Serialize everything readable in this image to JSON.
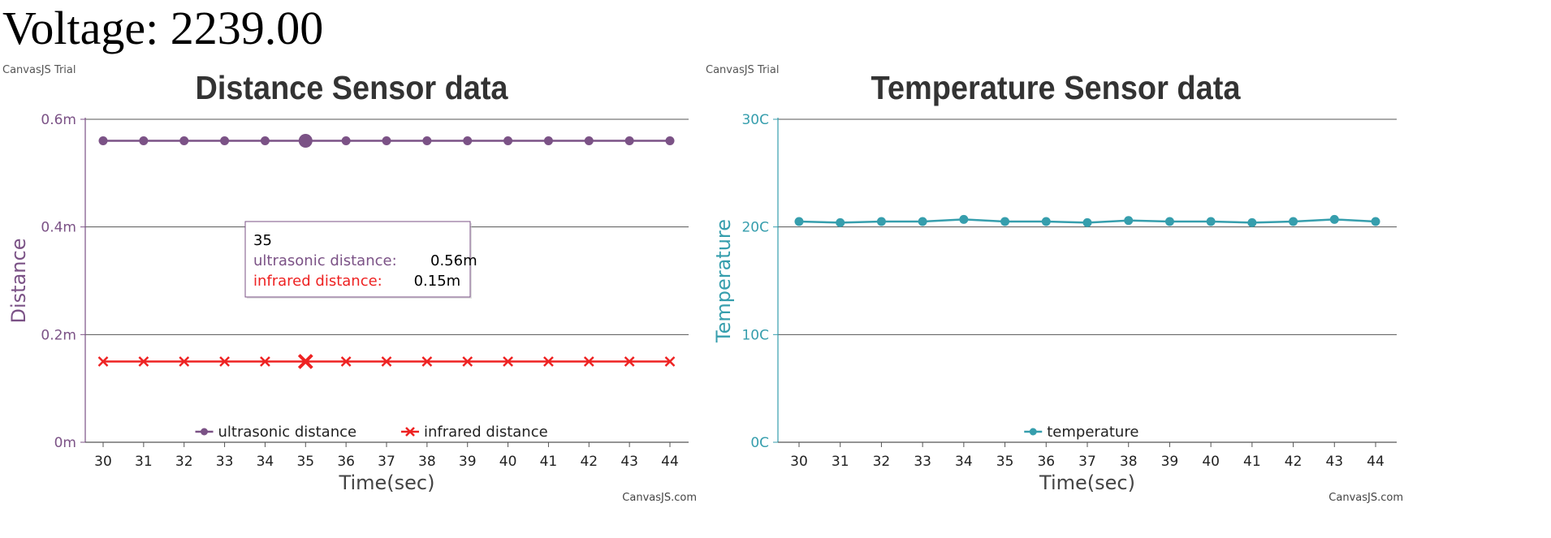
{
  "voltage": {
    "label": "Voltage:",
    "value": "2239.00"
  },
  "chart_data": [
    {
      "type": "line",
      "title": "Distance Sensor data",
      "watermark": "CanvasJS Trial",
      "credit": "CanvasJS.com",
      "xlabel": "Time(sec)",
      "ylabel": "Distance",
      "x": [
        30,
        31,
        32,
        33,
        34,
        35,
        36,
        37,
        38,
        39,
        40,
        41,
        42,
        43,
        44
      ],
      "ylim": [
        0,
        0.6
      ],
      "yticks": [
        {
          "value": 0,
          "label": "0m"
        },
        {
          "value": 0.2,
          "label": "0.2m"
        },
        {
          "value": 0.4,
          "label": "0.4m"
        },
        {
          "value": 0.6,
          "label": "0.6m"
        }
      ],
      "grid": true,
      "legend_position": "bottom",
      "series": [
        {
          "name": "ultrasonic distance",
          "marker": "circle",
          "color": "#7b5286",
          "values": [
            0.56,
            0.56,
            0.56,
            0.56,
            0.56,
            0.56,
            0.56,
            0.56,
            0.56,
            0.56,
            0.56,
            0.56,
            0.56,
            0.56,
            0.56
          ]
        },
        {
          "name": "infrared distance",
          "marker": "cross",
          "color": "#ee2222",
          "values": [
            0.15,
            0.15,
            0.15,
            0.15,
            0.15,
            0.15,
            0.15,
            0.15,
            0.15,
            0.15,
            0.15,
            0.15,
            0.15,
            0.15,
            0.15
          ]
        }
      ],
      "highlight_x": 35,
      "tooltip": {
        "header": "35",
        "rows": [
          {
            "name": "ultrasonic distance:",
            "value": "0.56m",
            "color": "#7b5286"
          },
          {
            "name": "infrared distance:",
            "value": "0.15m",
            "color": "#ee2222"
          }
        ]
      },
      "axis_color": "#7b5286"
    },
    {
      "type": "line",
      "title": "Temperature Sensor data",
      "watermark": "CanvasJS Trial",
      "credit": "CanvasJS.com",
      "xlabel": "Time(sec)",
      "ylabel": "Temperature",
      "x": [
        30,
        31,
        32,
        33,
        34,
        35,
        36,
        37,
        38,
        39,
        40,
        41,
        42,
        43,
        44
      ],
      "ylim": [
        0,
        30
      ],
      "yticks": [
        {
          "value": 0,
          "label": "0C"
        },
        {
          "value": 10,
          "label": "10C"
        },
        {
          "value": 20,
          "label": "20C"
        },
        {
          "value": 30,
          "label": "30C"
        }
      ],
      "grid": true,
      "legend_position": "bottom",
      "series": [
        {
          "name": "temperature",
          "marker": "circle",
          "color": "#369ead",
          "values": [
            20.5,
            20.4,
            20.5,
            20.5,
            20.7,
            20.5,
            20.5,
            20.4,
            20.6,
            20.5,
            20.5,
            20.4,
            20.5,
            20.7,
            20.5
          ]
        }
      ],
      "axis_color": "#369ead"
    }
  ]
}
